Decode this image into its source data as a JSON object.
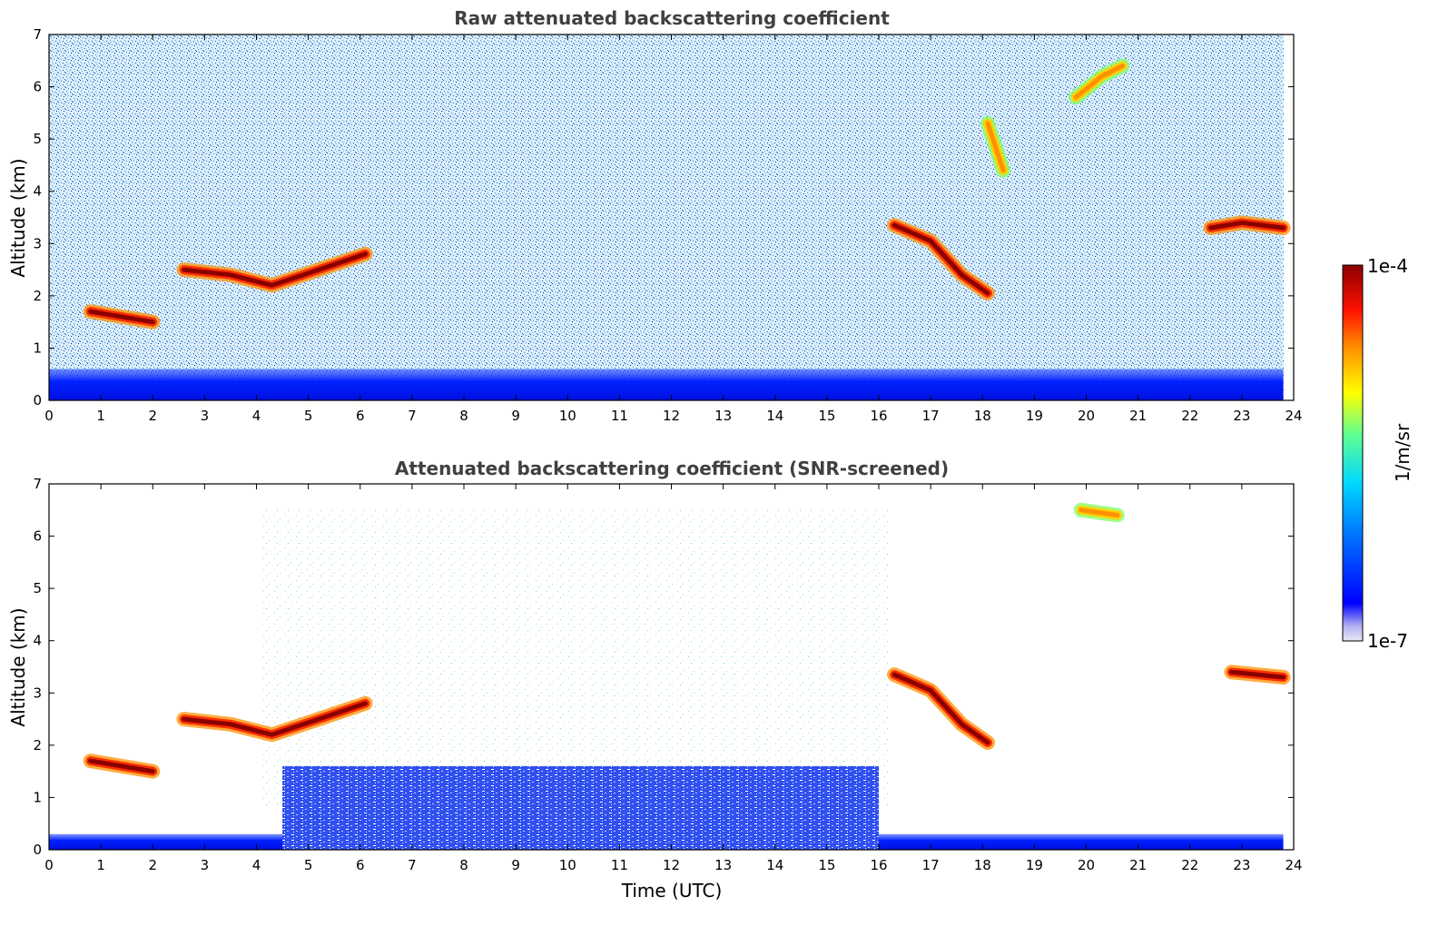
{
  "chart_data": [
    {
      "type": "heatmap",
      "title": "Raw attenuated backscattering coefficient",
      "xlabel": "",
      "ylabel": "Altitude (km)",
      "xlim": [
        0,
        24
      ],
      "ylim": [
        0,
        7
      ],
      "x_ticks": [
        "0",
        "1",
        "2",
        "3",
        "4",
        "5",
        "6",
        "7",
        "8",
        "9",
        "10",
        "11",
        "12",
        "13",
        "14",
        "15",
        "16",
        "17",
        "18",
        "19",
        "20",
        "21",
        "22",
        "23",
        "24"
      ],
      "y_ticks": [
        "0",
        "1",
        "2",
        "3",
        "4",
        "5",
        "6",
        "7"
      ],
      "features": [
        {
          "kind": "boundary-layer",
          "t_start": 0,
          "t_end": 23.8,
          "alt_top": 0.6,
          "level": "low-blue"
        },
        {
          "kind": "cloud-layer",
          "points": [
            [
              0.8,
              1.7
            ],
            [
              1.4,
              1.6
            ],
            [
              2.0,
              1.5
            ]
          ],
          "level": "max"
        },
        {
          "kind": "cloud-layer",
          "points": [
            [
              2.6,
              2.5
            ],
            [
              3.5,
              2.4
            ],
            [
              4.3,
              2.2
            ],
            [
              5.2,
              2.5
            ],
            [
              6.1,
              2.8
            ]
          ],
          "level": "max"
        },
        {
          "kind": "cloud-layer",
          "points": [
            [
              16.3,
              3.35
            ],
            [
              17.0,
              3.05
            ],
            [
              17.6,
              2.4
            ],
            [
              18.1,
              2.05
            ]
          ],
          "level": "max"
        },
        {
          "kind": "cloud-layer",
          "points": [
            [
              18.1,
              5.3
            ],
            [
              18.4,
              4.4
            ]
          ],
          "level": "high"
        },
        {
          "kind": "cloud-layer",
          "points": [
            [
              19.8,
              5.8
            ],
            [
              20.3,
              6.2
            ],
            [
              20.7,
              6.4
            ]
          ],
          "level": "high"
        },
        {
          "kind": "cloud-layer",
          "points": [
            [
              22.4,
              3.3
            ],
            [
              23.0,
              3.4
            ],
            [
              23.8,
              3.3
            ]
          ],
          "level": "max"
        }
      ]
    },
    {
      "type": "heatmap",
      "title": "Attenuated backscattering coefficient (SNR-screened)",
      "xlabel": "Time (UTC)",
      "ylabel": "Altitude (km)",
      "xlim": [
        0,
        24
      ],
      "ylim": [
        0,
        7
      ],
      "x_ticks": [
        "0",
        "1",
        "2",
        "3",
        "4",
        "5",
        "6",
        "7",
        "8",
        "9",
        "10",
        "11",
        "12",
        "13",
        "14",
        "15",
        "16",
        "17",
        "18",
        "19",
        "20",
        "21",
        "22",
        "23",
        "24"
      ],
      "y_ticks": [
        "0",
        "1",
        "2",
        "3",
        "4",
        "5",
        "6",
        "7"
      ],
      "features": [
        {
          "kind": "boundary-layer",
          "t_start": 0,
          "t_end": 23.8,
          "alt_top": 0.3,
          "level": "low-blue"
        },
        {
          "kind": "boundary-layer",
          "t_start": 4.5,
          "t_end": 16.0,
          "alt_top": 1.6,
          "level": "mid-blue"
        },
        {
          "kind": "cloud-layer",
          "points": [
            [
              0.8,
              1.7
            ],
            [
              1.4,
              1.6
            ],
            [
              2.0,
              1.5
            ]
          ],
          "level": "max"
        },
        {
          "kind": "cloud-layer",
          "points": [
            [
              2.6,
              2.5
            ],
            [
              3.5,
              2.4
            ],
            [
              4.3,
              2.2
            ],
            [
              5.2,
              2.5
            ],
            [
              6.1,
              2.8
            ]
          ],
          "level": "max"
        },
        {
          "kind": "cloud-layer",
          "points": [
            [
              16.3,
              3.35
            ],
            [
              17.0,
              3.05
            ],
            [
              17.6,
              2.4
            ],
            [
              18.1,
              2.05
            ]
          ],
          "level": "max"
        },
        {
          "kind": "cloud-layer",
          "points": [
            [
              19.9,
              6.5
            ],
            [
              20.6,
              6.4
            ]
          ],
          "level": "high"
        },
        {
          "kind": "cloud-layer",
          "points": [
            [
              22.8,
              3.4
            ],
            [
              23.8,
              3.3
            ]
          ],
          "level": "max"
        }
      ]
    }
  ],
  "colorbar": {
    "label": "1/m/sr",
    "max_label": "1e-4",
    "min_label": "1e-7",
    "colors": [
      "#e8e8f8",
      "#0000ff",
      "#00ccff",
      "#80ff80",
      "#ffff00",
      "#ff8000",
      "#ff0000",
      "#8b0000"
    ]
  }
}
